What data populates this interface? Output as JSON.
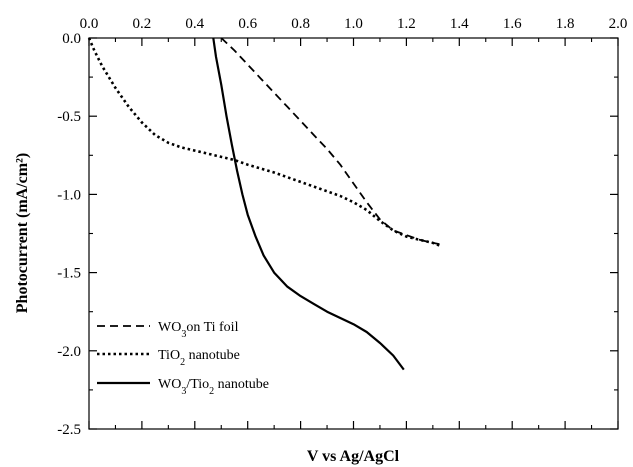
{
  "chart_data": {
    "type": "line",
    "title": "",
    "xlabel": "V vs Ag/AgCl",
    "ylabel": "Photocurrent (mA/cm²)",
    "xlim": [
      0.0,
      2.0
    ],
    "ylim": [
      -2.5,
      0.0
    ],
    "x_ticks": [
      "0.0",
      "0.2",
      "0.4",
      "0.6",
      "0.8",
      "1.0",
      "1.2",
      "1.4",
      "1.6",
      "1.8",
      "2.0"
    ],
    "y_ticks": [
      "0.0",
      "-0.5",
      "-1.0",
      "-1.5",
      "-2.0",
      "-2.5"
    ],
    "grid": false,
    "legend_position": "bottom-left",
    "series": [
      {
        "key": "wo3_ti_foil",
        "name": "WO3on Ti foil",
        "style": "dashed",
        "color": "#000000",
        "x": [
          0.5,
          0.55,
          0.6,
          0.65,
          0.7,
          0.75,
          0.8,
          0.85,
          0.9,
          0.95,
          1.0,
          1.05,
          1.1,
          1.15,
          1.2,
          1.25,
          1.3,
          1.33
        ],
        "y": [
          0.0,
          -0.08,
          -0.17,
          -0.26,
          -0.35,
          -0.44,
          -0.53,
          -0.62,
          -0.71,
          -0.81,
          -0.93,
          -1.05,
          -1.16,
          -1.23,
          -1.26,
          -1.29,
          -1.31,
          -1.32
        ]
      },
      {
        "key": "tio2_nanotube",
        "name": "TiO2 nanotube",
        "style": "dotted",
        "color": "#000000",
        "x": [
          0.0,
          0.02,
          0.05,
          0.1,
          0.15,
          0.2,
          0.25,
          0.3,
          0.35,
          0.4,
          0.45,
          0.5,
          0.55,
          0.6,
          0.7,
          0.8,
          0.9,
          0.95,
          1.0,
          1.05,
          1.1,
          1.15,
          1.2,
          1.25,
          1.3,
          1.33
        ],
        "y": [
          0.0,
          -0.08,
          -0.18,
          -0.32,
          -0.44,
          -0.54,
          -0.62,
          -0.67,
          -0.7,
          -0.72,
          -0.74,
          -0.76,
          -0.78,
          -0.81,
          -0.86,
          -0.92,
          -0.98,
          -1.01,
          -1.05,
          -1.1,
          -1.17,
          -1.23,
          -1.27,
          -1.29,
          -1.31,
          -1.33
        ]
      },
      {
        "key": "wo3_tio2_nanotube",
        "name": "WO3/Tio2 nanotube",
        "style": "solid",
        "color": "#000000",
        "x": [
          0.47,
          0.48,
          0.5,
          0.52,
          0.54,
          0.56,
          0.58,
          0.6,
          0.63,
          0.66,
          0.7,
          0.75,
          0.8,
          0.85,
          0.9,
          0.95,
          1.0,
          1.05,
          1.1,
          1.15,
          1.19
        ],
        "y": [
          0.0,
          -0.12,
          -0.3,
          -0.5,
          -0.68,
          -0.85,
          -1.0,
          -1.13,
          -1.27,
          -1.39,
          -1.5,
          -1.59,
          -1.65,
          -1.7,
          -1.75,
          -1.79,
          -1.83,
          -1.88,
          -1.95,
          -2.03,
          -2.12
        ]
      }
    ],
    "legend": [
      {
        "key": "wo3_ti_foil",
        "prefix": "WO",
        "sub": "3",
        "suffix": "on Ti foil",
        "style": "dashed"
      },
      {
        "key": "tio2_nanotube",
        "prefix": "TiO",
        "sub": "2",
        "suffix": " nanotube",
        "style": "dotted"
      },
      {
        "key": "wo3_tio2_nanotube",
        "prefix": "WO",
        "sub": "3",
        "suffix": "/Tio",
        "sub2": "2",
        "suffix2": " nanotube",
        "style": "solid"
      }
    ]
  }
}
